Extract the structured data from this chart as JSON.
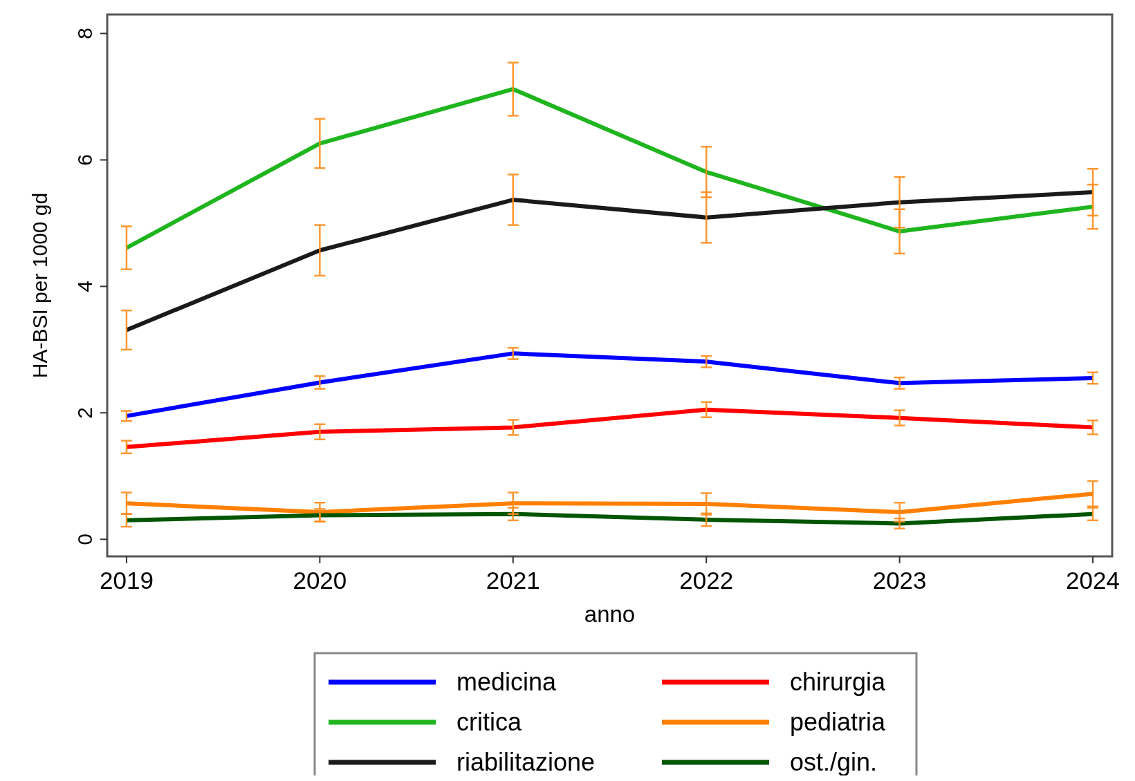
{
  "chart_data": {
    "type": "line",
    "xlabel": "anno",
    "ylabel": "HA-BSI per 1000 gd",
    "x": [
      2019,
      2020,
      2021,
      2022,
      2023,
      2024
    ],
    "xlim": [
      2018.9,
      2024.1
    ],
    "xticks": [
      2019,
      2020,
      2021,
      2022,
      2023,
      2024
    ],
    "ylim": [
      -0.27,
      8.3
    ],
    "yticks": [
      0,
      2,
      4,
      6,
      8
    ],
    "grid": false,
    "legend": "bottom",
    "line_style": "solid",
    "series": [
      {
        "name": "medicina",
        "color": "#0000ff",
        "values": [
          1.95,
          2.48,
          2.94,
          2.81,
          2.47,
          2.55
        ],
        "errors": [
          0.08,
          0.1,
          0.09,
          0.09,
          0.09,
          0.09
        ]
      },
      {
        "name": "chirurgia",
        "color": "#ff0000",
        "values": [
          1.46,
          1.7,
          1.77,
          2.05,
          1.92,
          1.77
        ],
        "errors": [
          0.1,
          0.12,
          0.12,
          0.12,
          0.12,
          0.11
        ]
      },
      {
        "name": "critica",
        "color": "#1fb51f",
        "values": [
          4.61,
          6.26,
          7.12,
          5.81,
          4.87,
          5.26
        ],
        "errors": [
          0.34,
          0.39,
          0.42,
          0.4,
          0.35,
          0.35
        ]
      },
      {
        "name": "pediatria",
        "color": "#ff8000",
        "values": [
          0.57,
          0.43,
          0.57,
          0.56,
          0.43,
          0.72
        ],
        "errors": [
          0.17,
          0.15,
          0.17,
          0.17,
          0.15,
          0.2
        ]
      },
      {
        "name": "riabilitazione",
        "color": "#1a1a1a",
        "values": [
          3.31,
          4.57,
          5.37,
          5.09,
          5.33,
          5.49
        ],
        "errors": [
          0.31,
          0.4,
          0.4,
          0.4,
          0.4,
          0.37
        ]
      },
      {
        "name": "ost./gin.",
        "color": "#005500",
        "values": [
          0.3,
          0.38,
          0.4,
          0.31,
          0.25,
          0.4
        ],
        "errors": [
          0.1,
          0.1,
          0.1,
          0.1,
          0.08,
          0.1
        ]
      }
    ]
  }
}
